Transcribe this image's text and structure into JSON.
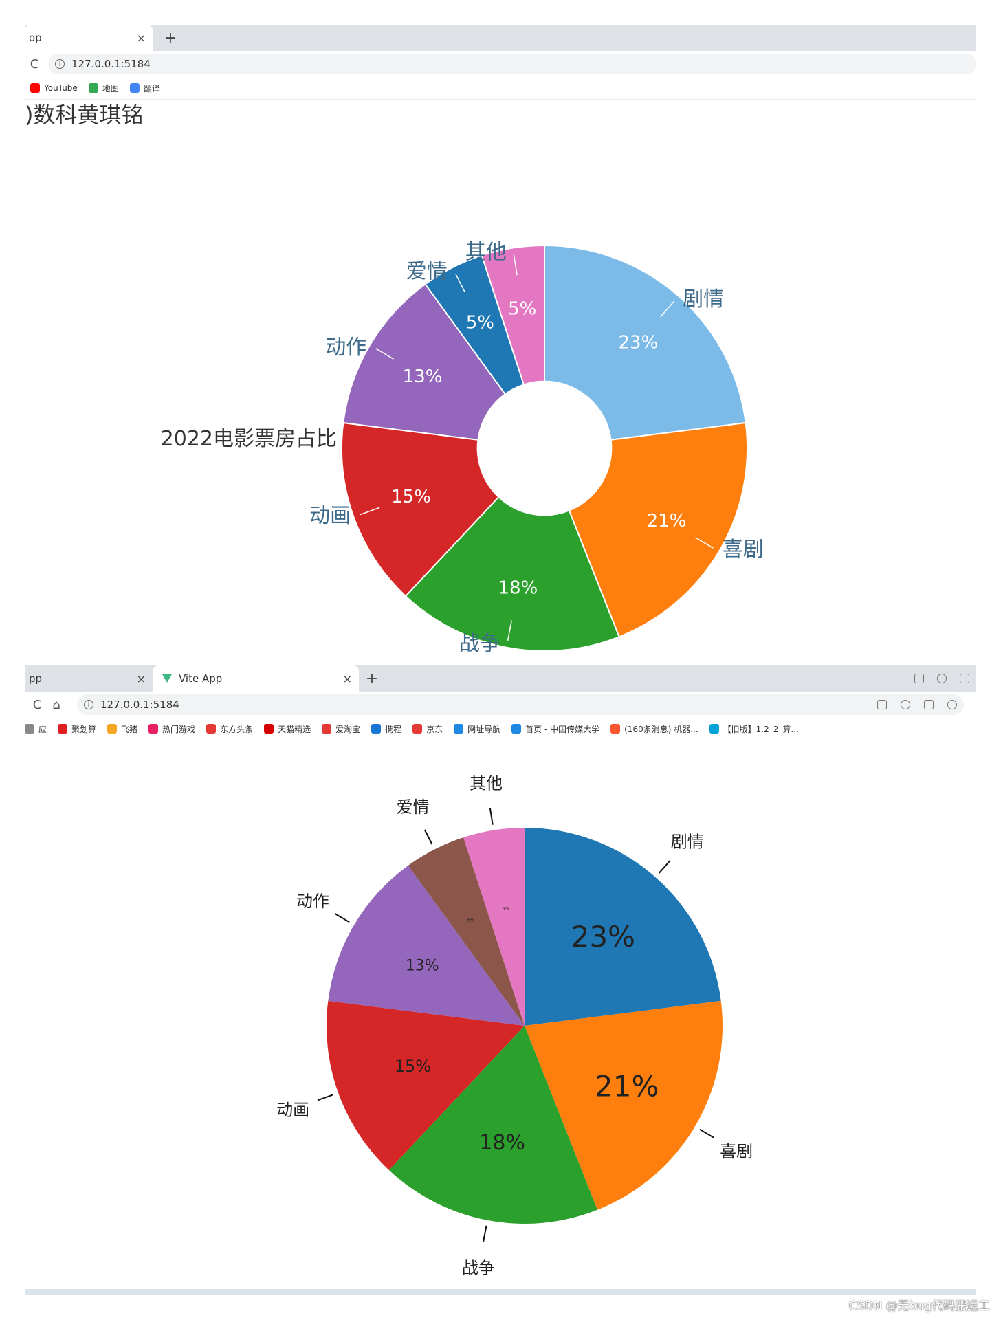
{
  "browser1": {
    "tabs": [
      {
        "label": "op"
      }
    ],
    "close_glyph": "×",
    "newtab_glyph": "+",
    "reload_glyph": "C",
    "url": "127.0.0.1:5184",
    "bookmarks": [
      {
        "label": "YouTube",
        "color": "#ff0000"
      },
      {
        "label": "地图",
        "color": "#34a853"
      },
      {
        "label": "翻译",
        "color": "#4285f4"
      }
    ],
    "page_heading": ")数科黄琪铭"
  },
  "browser2": {
    "tabs": [
      {
        "label": "pp"
      },
      {
        "label": "Vite App"
      }
    ],
    "close_glyph": "×",
    "newtab_glyph": "+",
    "reload_glyph": "C",
    "home_glyph": "⌂",
    "url": "127.0.0.1:5184",
    "bookmarks": [
      {
        "label": "应",
        "color": "#888888"
      },
      {
        "label": "聚划算",
        "color": "#e02020"
      },
      {
        "label": "飞猪",
        "color": "#f5a623"
      },
      {
        "label": "热门游戏",
        "color": "#e91e63"
      },
      {
        "label": "东方头条",
        "color": "#e53935"
      },
      {
        "label": "天猫精选",
        "color": "#d50000"
      },
      {
        "label": "爱淘宝",
        "color": "#e53935"
      },
      {
        "label": "携程",
        "color": "#1976d2"
      },
      {
        "label": "京东",
        "color": "#e53935"
      },
      {
        "label": "网址导航",
        "color": "#1e88e5"
      },
      {
        "label": "首页 - 中国传媒大学",
        "color": "#1e88e5"
      },
      {
        "label": "(160条消息) 机器...",
        "color": "#fc5531"
      },
      {
        "label": "【旧版】1.2_2_算...",
        "color": "#00a1d6"
      }
    ]
  },
  "watermark": "CSDN @无bug代码搬运工",
  "chart_data": [
    {
      "type": "pie",
      "variant": "donut",
      "title": "2022电影票房占比",
      "categories": [
        "剧情",
        "喜剧",
        "战争",
        "动画",
        "动作",
        "爱情",
        "其他"
      ],
      "values": [
        23,
        21,
        18,
        15,
        13,
        5,
        5
      ],
      "value_labels": [
        "23%",
        "21%",
        "18%",
        "15%",
        "13%",
        "5%",
        "5%"
      ],
      "colors": [
        "#7cbbe8",
        "#ff7f0e",
        "#2ca02c",
        "#d62728",
        "#9467bd",
        "#1f77b4",
        "#e377c2"
      ],
      "start": "top, clockwise",
      "inner_radius_ratio": 0.33
    },
    {
      "type": "pie",
      "title": "",
      "categories": [
        "剧情",
        "喜剧",
        "战争",
        "动画",
        "动作",
        "爱情",
        "其他"
      ],
      "values": [
        23,
        21,
        18,
        15,
        13,
        5,
        5
      ],
      "value_labels": [
        "23%",
        "21%",
        "18%",
        "15%",
        "13%",
        "5%",
        "5%"
      ],
      "colors": [
        "#1f77b4",
        "#ff7f0e",
        "#2ca02c",
        "#d62728",
        "#9467bd",
        "#8c564b",
        "#e377c2"
      ],
      "start": "top, clockwise"
    }
  ]
}
